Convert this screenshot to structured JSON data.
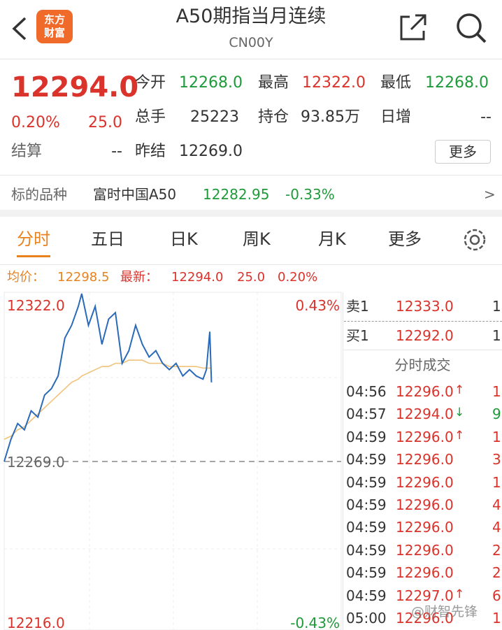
{
  "header": {
    "title": "A50期指当月连续",
    "subtitle": "CN00Y",
    "logo": [
      "东方",
      "财富"
    ]
  },
  "quote": {
    "price": "12294.0",
    "percent": "0.20%",
    "change": "25.0",
    "fields": [
      {
        "label": "今开",
        "value": "12268.0"
      },
      {
        "label": "最高",
        "value": "12322.0"
      },
      {
        "label": "最低",
        "value": "12268.0"
      },
      {
        "label": "总手",
        "value": "25223"
      },
      {
        "label": "持仓",
        "value": "93.85万"
      },
      {
        "label": "日增",
        "value": "--"
      },
      {
        "label": "结算",
        "value": "--"
      },
      {
        "label": "昨结",
        "value": "12269.0"
      }
    ],
    "more": "更多"
  },
  "underlying": {
    "label": "标的品种",
    "name": "富时中国A50",
    "price": "12282.95",
    "percent": "-0.33%",
    "arrow": ">"
  },
  "tabs": [
    "分时",
    "五日",
    "日K",
    "周K",
    "月K",
    "更多"
  ],
  "info": {
    "avg_label": "均价：",
    "avg": "12298.5",
    "last_label": "最新：",
    "last": "12294.0",
    "change": "25.0",
    "percent": "0.20%"
  },
  "chart_data": {
    "type": "line",
    "x": [
      0,
      2,
      4,
      6,
      8,
      10,
      12,
      14,
      16,
      18,
      20,
      22,
      23,
      25,
      27,
      29,
      31,
      33,
      35,
      37,
      39,
      41,
      43,
      45,
      47,
      49,
      51,
      53,
      55,
      57,
      59,
      60,
      61,
      61.5
    ],
    "xlim": [
      0,
      100
    ],
    "ylim": [
      12216,
      12322
    ],
    "yticks": [
      {
        "value": 12322,
        "label": "12322.0"
      },
      {
        "value": 12269,
        "label": "12269.0"
      },
      {
        "value": 12216,
        "label": "12216.0"
      }
    ],
    "y2lim": [
      -0.43,
      0.43
    ],
    "y2ticks": [
      {
        "value": 0.43,
        "label": "0.43%"
      },
      {
        "value": -0.43,
        "label": "-0.43%"
      }
    ],
    "series": [
      {
        "color": "#2a6ab8",
        "values": [
          12269,
          12276,
          12281,
          12279,
          12285,
          12283,
          12290,
          12292,
          12296,
          12308,
          12312,
          12318,
          12322,
          12312,
          12318,
          12306,
          12314,
          12316,
          12300,
          12304,
          12312,
          12306,
          12302,
          12304,
          12300,
          12298,
          12300,
          12296,
          12298,
          12296,
          12295,
          12298,
          12310,
          12294
        ]
      },
      {
        "color": "#f2c27a",
        "values": [
          12276,
          12277,
          12279,
          12280,
          12282,
          12284,
          12286,
          12288,
          12290,
          12292,
          12294,
          12295,
          12296,
          12297,
          12298,
          12299,
          12299,
          12300,
          12300,
          12301,
          12301,
          12301,
          12300,
          12300,
          12300,
          12299,
          12299,
          12299,
          12299,
          12299,
          12298.5,
          12298.5,
          12298.5,
          12298.5
        ]
      }
    ]
  },
  "order_book": {
    "sell": {
      "label": "卖1",
      "price": "12333.0",
      "volume": "1"
    },
    "buy": {
      "label": "买1",
      "price": "12292.0",
      "volume": "1"
    }
  },
  "trades": {
    "title": "分时成交",
    "rows": [
      [
        "04:56",
        "12296.0",
        "↑",
        "1"
      ],
      [
        "04:57",
        "12294.0",
        "↓",
        "9"
      ],
      [
        "04:59",
        "12296.0",
        "↑",
        "1"
      ],
      [
        "04:59",
        "12296.0",
        null,
        "3"
      ],
      [
        "04:59",
        "12296.0",
        null,
        "1"
      ],
      [
        "04:59",
        "12296.0",
        null,
        "4"
      ],
      [
        "04:59",
        "12296.0",
        null,
        "4"
      ],
      [
        "04:59",
        "12296.0",
        null,
        "2"
      ],
      [
        "04:59",
        "12296.0",
        null,
        "2"
      ],
      [
        "04:59",
        "12297.0",
        "↑",
        "6"
      ],
      [
        "05:00",
        "12296.0",
        null,
        "1"
      ]
    ]
  },
  "watermark": "@财智先锋"
}
